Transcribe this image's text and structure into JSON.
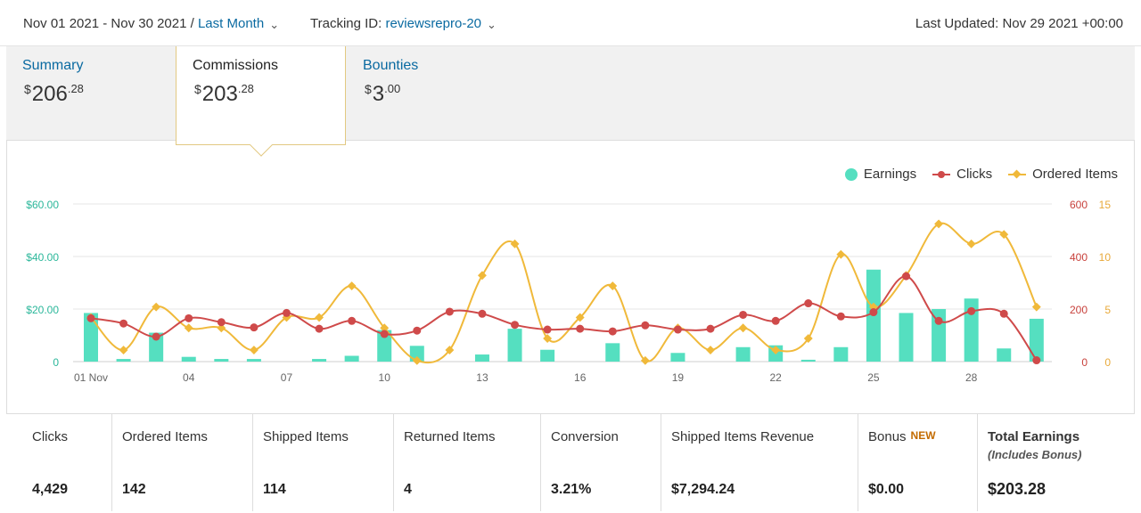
{
  "header": {
    "date_range": "Nov 01 2021 - Nov 30 2021 /",
    "period": "Last Month",
    "tracking_label": "Tracking ID:",
    "tracking_id": "reviewsrepro-20",
    "last_updated": "Last Updated: Nov 29 2021 +00:00"
  },
  "tabs": [
    {
      "label": "Summary",
      "currency": "$",
      "whole": "206",
      "cents": ".28",
      "active": false
    },
    {
      "label": "Commissions",
      "currency": "$",
      "whole": "203",
      "cents": ".28",
      "active": true
    },
    {
      "label": "Bounties",
      "currency": "$",
      "whole": "3",
      "cents": ".00",
      "active": false
    }
  ],
  "legend": {
    "earnings": "Earnings",
    "clicks": "Clicks",
    "ordered": "Ordered Items"
  },
  "chart_data": {
    "type": "bar",
    "x_tick_labels": [
      "01 Nov",
      "04",
      "07",
      "10",
      "13",
      "16",
      "19",
      "22",
      "25",
      "28"
    ],
    "days": [
      1,
      2,
      3,
      4,
      5,
      6,
      7,
      8,
      9,
      10,
      11,
      12,
      13,
      14,
      15,
      16,
      17,
      18,
      19,
      20,
      21,
      22,
      23,
      24,
      25,
      26,
      27,
      28,
      29,
      30
    ],
    "left_axis": {
      "ticks": [
        "$60.00",
        "$40.00",
        "$20.00",
        "0"
      ],
      "max": 60,
      "color": "#2bb79a"
    },
    "right_axis_clicks": {
      "ticks": [
        "600",
        "400",
        "200",
        "0"
      ],
      "max": 600,
      "color": "#c8413c"
    },
    "right_axis_items": {
      "ticks": [
        "15",
        "10",
        "5",
        "0"
      ],
      "max": 15,
      "color": "#e8a93a"
    },
    "series": [
      {
        "name": "Earnings",
        "kind": "bar",
        "color": "#55dfc0",
        "values": [
          18.5,
          1,
          11,
          1.8,
          1,
          1,
          0,
          1,
          2.2,
          12,
          6,
          0,
          2.7,
          12.5,
          4.5,
          0,
          7,
          0,
          3.3,
          0,
          5.5,
          6.2,
          0.7,
          5.5,
          35,
          18.5,
          20,
          24,
          5,
          16.3
        ]
      },
      {
        "name": "Clicks",
        "kind": "line",
        "color": "#cf4a4a",
        "values": [
          165,
          145,
          95,
          165,
          150,
          130,
          185,
          125,
          155,
          105,
          118,
          190,
          182,
          140,
          122,
          125,
          115,
          138,
          122,
          125,
          178,
          155,
          222,
          172,
          188,
          325,
          155,
          192,
          182,
          5
        ]
      },
      {
        "name": "Ordered Items",
        "kind": "line",
        "color": "#f0b93a",
        "values": [
          4.2,
          1.1,
          5.2,
          3.2,
          3.2,
          1.1,
          4.2,
          4.2,
          7.2,
          3.2,
          0.1,
          1.1,
          8.2,
          11.2,
          2.2,
          4.2,
          7.2,
          0.1,
          3.2,
          1.1,
          3.2,
          1.1,
          2.2,
          10.2,
          5.2,
          8.2,
          13.1,
          11.2,
          12.1,
          5.2
        ]
      }
    ],
    "grid": true,
    "legend_position": "top-right"
  },
  "metrics": [
    {
      "label": "Clicks",
      "value": "4,429"
    },
    {
      "label": "Ordered Items",
      "value": "142"
    },
    {
      "label": "Shipped Items",
      "value": "114"
    },
    {
      "label": "Returned Items",
      "value": "4"
    },
    {
      "label": "Conversion",
      "value": "3.21%"
    },
    {
      "label": "Shipped Items Revenue",
      "value": "$7,294.24"
    },
    {
      "label": "Bonus",
      "badge": "NEW",
      "value": "$0.00"
    },
    {
      "label": "Total Earnings",
      "sub": "(Includes Bonus)",
      "value": "$203.28"
    }
  ]
}
